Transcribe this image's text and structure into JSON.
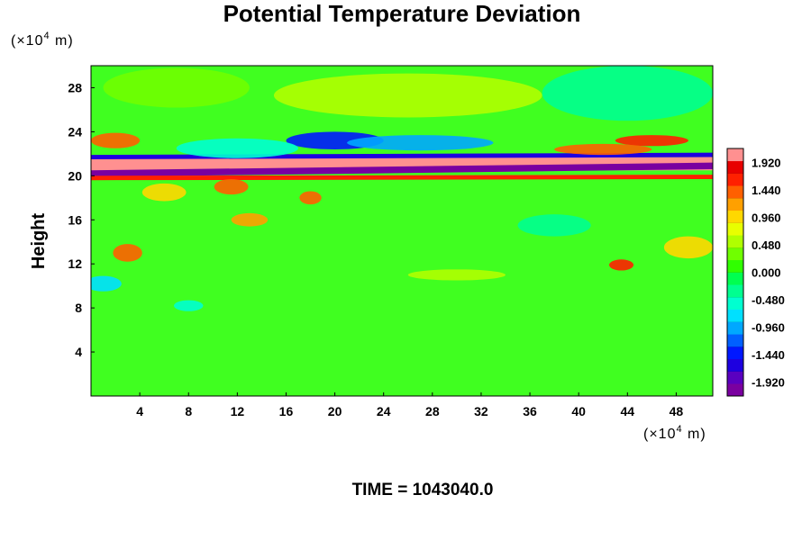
{
  "chart_data": {
    "type": "heatmap",
    "title": "Potential Temperature Deviation",
    "ylabel": "Height",
    "xlabel": "",
    "y_unit": {
      "prefix": "(×10",
      "exponent": "4",
      "suffix": " m)"
    },
    "x_unit": {
      "prefix": "(×10",
      "exponent": "4",
      "suffix": " m)"
    },
    "xlim": [
      0,
      51
    ],
    "ylim": [
      0,
      30
    ],
    "x_ticks": [
      4,
      8,
      12,
      16,
      20,
      24,
      28,
      32,
      36,
      40,
      44,
      48
    ],
    "x_tick_labels": [
      "4",
      "8",
      "12",
      "16",
      "20",
      "24",
      "28",
      "32",
      "36",
      "40",
      "44",
      "48"
    ],
    "y_ticks": [
      4,
      8,
      12,
      16,
      20,
      24,
      28
    ],
    "y_tick_labels": [
      "4",
      "8",
      "12",
      "16",
      "20",
      "24",
      "28"
    ],
    "colorbar": {
      "min": -2.16,
      "max": 2.16,
      "step": 0.12,
      "tick_values": [
        1.92,
        1.44,
        0.96,
        0.48,
        0.0,
        -0.48,
        -0.96,
        -1.44,
        -1.92
      ],
      "tick_labels": [
        "1.920",
        "1.440",
        "0.960",
        "0.480",
        "0.000",
        "-0.480",
        "-0.960",
        "-1.440",
        "-1.920"
      ],
      "colors": [
        "#7a00a0",
        "#5a00c0",
        "#1e00e0",
        "#0018ff",
        "#0060ff",
        "#00a8ff",
        "#00e0ff",
        "#00ffd0",
        "#00ff90",
        "#00ff50",
        "#30ff00",
        "#70ff00",
        "#b0ff00",
        "#e8ff00",
        "#ffd800",
        "#ffa000",
        "#ff6000",
        "#ff2000",
        "#e80000",
        "#ff9090"
      ]
    },
    "features": [
      {
        "kind": "band",
        "x_range": [
          0,
          51
        ],
        "y_center": 21.0,
        "y_center_end": 21.1,
        "thickness": 1.2,
        "value": 2.0
      },
      {
        "kind": "band",
        "x_range": [
          0,
          51
        ],
        "y_center": 20.2,
        "y_center_end": 20.9,
        "thickness": 0.6,
        "value": -2.0
      },
      {
        "kind": "band",
        "x_range": [
          0,
          51
        ],
        "y_center": 21.7,
        "y_center_end": 21.9,
        "thickness": 0.4,
        "value": -1.6
      },
      {
        "kind": "band",
        "x_range": [
          0,
          51
        ],
        "y_center": 19.8,
        "y_center_end": 19.9,
        "thickness": 0.4,
        "value": 1.6
      },
      {
        "kind": "blob",
        "x": 20,
        "y": 23.2,
        "rx": 4,
        "ry": 0.8,
        "value": -1.3
      },
      {
        "kind": "blob",
        "x": 27,
        "y": 23.0,
        "rx": 6,
        "ry": 0.7,
        "value": -0.9
      },
      {
        "kind": "blob",
        "x": 12,
        "y": 22.5,
        "rx": 5,
        "ry": 0.9,
        "value": -0.6
      },
      {
        "kind": "blob",
        "x": 46,
        "y": 23.2,
        "rx": 3,
        "ry": 0.5,
        "value": 1.6
      },
      {
        "kind": "blob",
        "x": 42,
        "y": 22.4,
        "rx": 4,
        "ry": 0.5,
        "value": 1.4
      },
      {
        "kind": "blob",
        "x": 2,
        "y": 23.2,
        "rx": 2,
        "ry": 0.7,
        "value": 1.4
      },
      {
        "kind": "blob",
        "x": 11.5,
        "y": 19.0,
        "rx": 1.4,
        "ry": 0.7,
        "value": 1.5
      },
      {
        "kind": "blob",
        "x": 18,
        "y": 18.0,
        "rx": 0.9,
        "ry": 0.6,
        "value": 1.5
      },
      {
        "kind": "blob",
        "x": 13,
        "y": 16.0,
        "rx": 1.5,
        "ry": 0.6,
        "value": 1.2
      },
      {
        "kind": "blob",
        "x": 6,
        "y": 18.5,
        "rx": 1.8,
        "ry": 0.8,
        "value": 0.9
      },
      {
        "kind": "blob",
        "x": 3,
        "y": 13.0,
        "rx": 1.2,
        "ry": 0.8,
        "value": 1.4
      },
      {
        "kind": "blob",
        "x": 43.5,
        "y": 11.9,
        "rx": 1.0,
        "ry": 0.5,
        "value": 1.6
      },
      {
        "kind": "blob",
        "x": 49,
        "y": 13.5,
        "rx": 2.0,
        "ry": 1.0,
        "value": 1.0
      },
      {
        "kind": "blob",
        "x": 26,
        "y": 27.3,
        "rx": 11,
        "ry": 2.0,
        "value": 0.55
      },
      {
        "kind": "blob",
        "x": 7,
        "y": 28.0,
        "rx": 6,
        "ry": 1.8,
        "value": 0.25
      },
      {
        "kind": "blob",
        "x": 44,
        "y": 27.5,
        "rx": 7,
        "ry": 2.5,
        "value": -0.35
      },
      {
        "kind": "blob",
        "x": 1,
        "y": 10.2,
        "rx": 1.5,
        "ry": 0.7,
        "value": -0.7
      },
      {
        "kind": "blob",
        "x": 8,
        "y": 8.2,
        "rx": 1.2,
        "ry": 0.5,
        "value": -0.5
      },
      {
        "kind": "blob",
        "x": 30,
        "y": 11.0,
        "rx": 4,
        "ry": 0.5,
        "value": 0.45
      },
      {
        "kind": "blob",
        "x": 38,
        "y": 15.5,
        "rx": 3,
        "ry": 1.0,
        "value": -0.25
      }
    ]
  },
  "footer": {
    "time_label": "TIME = 1043040.0"
  }
}
